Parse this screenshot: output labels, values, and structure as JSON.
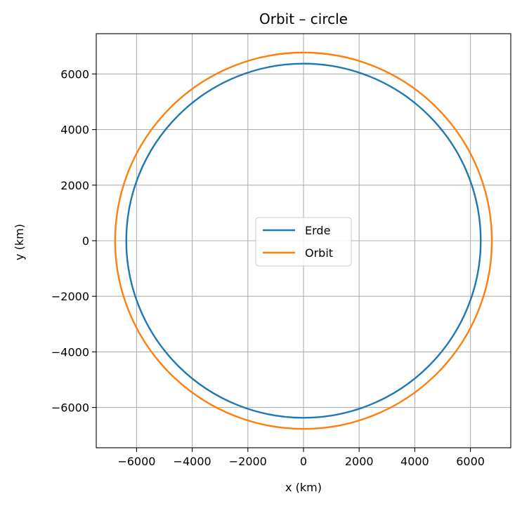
{
  "chart_data": {
    "type": "line",
    "title": "Orbit – circle",
    "xlabel": "x (km)",
    "ylabel": "y (km)",
    "xlim": [
      -7450,
      7450
    ],
    "ylim": [
      -7450,
      7450
    ],
    "xticks": [
      -6000,
      -4000,
      -2000,
      0,
      2000,
      4000,
      6000
    ],
    "yticks": [
      -6000,
      -4000,
      -2000,
      0,
      2000,
      4000,
      6000
    ],
    "xtick_labels": [
      "−6000",
      "−4000",
      "−2000",
      "0",
      "2000",
      "4000",
      "6000"
    ],
    "ytick_labels": [
      "−6000",
      "−4000",
      "−2000",
      "0",
      "2000",
      "4000",
      "6000"
    ],
    "grid": true,
    "legend_position": "center",
    "series": [
      {
        "name": "Erde",
        "shape": "circle",
        "center": [
          0,
          0
        ],
        "radius": 6371,
        "color": "#1f77b4"
      },
      {
        "name": "Orbit",
        "shape": "circle",
        "center": [
          0,
          0
        ],
        "radius": 6771,
        "color": "#ff7f0e"
      }
    ]
  }
}
